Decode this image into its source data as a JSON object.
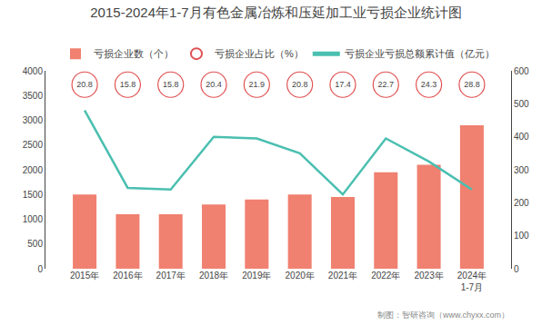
{
  "chart_data": {
    "type": "bar",
    "title": "2015-2024年1-7月有色金属冶炼和压延加工业亏损企业统计图",
    "categories": [
      "2015年",
      "2016年",
      "2017年",
      "2018年",
      "2019年",
      "2020年",
      "2021年",
      "2022年",
      "2023年",
      "2024年\n1-7月"
    ],
    "series": [
      {
        "name": "亏损企业数（个）",
        "type": "bar",
        "color": "#F08070",
        "values": [
          1500,
          1100,
          1100,
          1300,
          1400,
          1500,
          1450,
          1950,
          2100,
          2900
        ]
      },
      {
        "name": "亏损企业占比（%）",
        "type": "scatter",
        "marker": "circle",
        "color": "#E05050",
        "data_labels": true,
        "values": [
          20.8,
          15.8,
          15.8,
          20.4,
          21.9,
          20.8,
          17.4,
          22.7,
          24.3,
          28.8
        ]
      },
      {
        "name": "亏损企业亏损总额累计值（亿元）",
        "type": "line",
        "axis": "y2",
        "color": "#4ABFB0",
        "values": [
          480,
          245,
          240,
          400,
          395,
          350,
          225,
          395,
          325,
          240
        ]
      }
    ],
    "ylim": [
      0,
      4000
    ],
    "yticks": [
      0,
      500,
      1000,
      1500,
      2000,
      2500,
      3000,
      3500,
      4000
    ],
    "y2lim": [
      0,
      600
    ],
    "y2ticks": [
      0,
      100,
      200,
      300,
      400,
      500,
      600
    ],
    "grid": false,
    "legend": "top",
    "annotations": [
      "制图：智研咨询（www.chyxx.com）"
    ]
  }
}
